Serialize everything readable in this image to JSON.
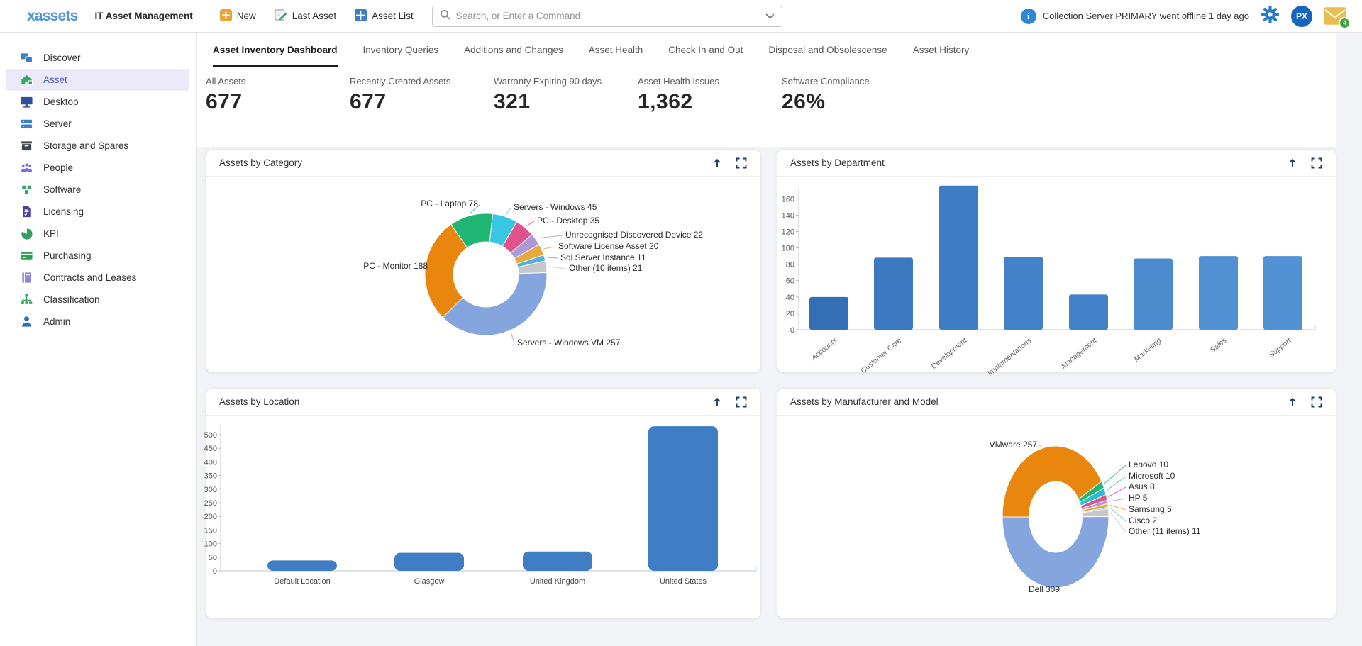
{
  "header": {
    "logo": "xassets",
    "app_title": "IT Asset Management",
    "actions": [
      {
        "label": "New",
        "icon": "plus-icon"
      },
      {
        "label": "Last Asset",
        "icon": "edit-icon"
      },
      {
        "label": "Asset List",
        "icon": "grid-icon"
      }
    ],
    "search_placeholder": "Search, or Enter a Command",
    "notification_text": "Collection Server PRIMARY went offline 1 day ago",
    "avatar_initials": "PX",
    "mail_badge_count": "4",
    "accent_blue": "#2d86d6"
  },
  "sidebar": {
    "items": [
      {
        "label": "Discover",
        "icon": "devices-icon",
        "color": "#3c7ecb"
      },
      {
        "label": "Asset",
        "icon": "home-icon",
        "color": "#34a566"
      },
      {
        "label": "Desktop",
        "icon": "monitor-icon",
        "color": "#2f4f9e"
      },
      {
        "label": "Server",
        "icon": "server-icon",
        "color": "#3c7ecb"
      },
      {
        "label": "Storage and Spares",
        "icon": "storage-icon",
        "color": "#3f4750"
      },
      {
        "label": "People",
        "icon": "people-icon",
        "color": "#7e6bd9"
      },
      {
        "label": "Software",
        "icon": "cubes-icon",
        "color": "#34a566"
      },
      {
        "label": "Licensing",
        "icon": "license-icon",
        "color": "#4b3f9e"
      },
      {
        "label": "KPI",
        "icon": "pie-icon",
        "color": "#2da05a"
      },
      {
        "label": "Purchasing",
        "icon": "card-icon",
        "color": "#2da05a"
      },
      {
        "label": "Contracts and Leases",
        "icon": "book-icon",
        "color": "#8d86d8"
      },
      {
        "label": "Classification",
        "icon": "tree-icon",
        "color": "#2da05a"
      },
      {
        "label": "Admin",
        "icon": "person-icon",
        "color": "#2f6fbe"
      }
    ]
  },
  "tabs": [
    {
      "label": "Asset Inventory Dashboard",
      "active": true
    },
    {
      "label": "Inventory Queries"
    },
    {
      "label": "Additions and Changes"
    },
    {
      "label": "Asset Health"
    },
    {
      "label": "Check In and Out"
    },
    {
      "label": "Disposal and Obsolescense"
    },
    {
      "label": "Asset History"
    }
  ],
  "stats": [
    {
      "label": "All Assets",
      "value": "677"
    },
    {
      "label": "Recently Created Assets",
      "value": "677"
    },
    {
      "label": "Warranty Expiring 90 days",
      "value": "321"
    },
    {
      "label": "Asset Health Issues",
      "value": "1,362"
    },
    {
      "label": "Software Compliance",
      "value": "26%"
    }
  ],
  "chart_data": [
    {
      "type": "donut",
      "title": "Assets by Category",
      "total": 677,
      "start_angle_deg": 325,
      "legend_position": "callout-labels",
      "slices": [
        {
          "label": "PC - Laptop",
          "value": 78,
          "color": "#1fb573"
        },
        {
          "label": "Servers - Windows",
          "value": 45,
          "color": "#38c6e3"
        },
        {
          "label": "PC - Desktop",
          "value": 35,
          "color": "#e0528e"
        },
        {
          "label": "Unrecognised Discovered Device",
          "value": 22,
          "color": "#ae97db"
        },
        {
          "label": "Software License Asset",
          "value": 20,
          "color": "#e9a93c"
        },
        {
          "label": "Sql Server Instance",
          "value": 11,
          "color": "#4fb3d9"
        },
        {
          "label": "Other (10 items)",
          "value": 21,
          "color": "#c7c7ca"
        },
        {
          "label": "Servers - Windows VM",
          "value": 257,
          "color": "#85a5de"
        },
        {
          "label": "PC - Monitor",
          "value": 188,
          "color": "#e8860d"
        }
      ]
    },
    {
      "type": "bar",
      "title": "Assets by Department",
      "categories": [
        "Accounts",
        "Customer Care",
        "Development",
        "Implementations",
        "Management",
        "Marketing",
        "Sales",
        "Support"
      ],
      "values": [
        40,
        88,
        176,
        89,
        43,
        87,
        90,
        90
      ],
      "bar_colors": [
        "#346fb5",
        "#3b78bf",
        "#3e7cc3",
        "#4282c8",
        "#4282c8",
        "#4c8bce",
        "#5190d3",
        "#5291d4"
      ],
      "ylim": [
        0,
        160
      ],
      "ytick_step": 20,
      "grid": false,
      "xlabel_style": "italic-rotated"
    },
    {
      "type": "bar",
      "title": "Assets by Location",
      "categories": [
        "Default Location",
        "Glasgow",
        "United Kingdom",
        "United States"
      ],
      "values": [
        38,
        66,
        71,
        531
      ],
      "bar_colors": [
        "#3f7ec4",
        "#3f7ec4",
        "#3f7ec4",
        "#3f7ec4"
      ],
      "ylim": [
        0,
        500
      ],
      "ytick_step": 50,
      "grid": false,
      "xlabel_style": "horizontal"
    },
    {
      "type": "donut",
      "title": "Assets by Manufacturer and Model",
      "total": 617,
      "start_angle_deg": 270,
      "legend_position": "callout-labels",
      "slices": [
        {
          "label": "VMware",
          "value": 257,
          "color": "#e8860d"
        },
        {
          "label": "Lenovo",
          "value": 10,
          "color": "#1fb573"
        },
        {
          "label": "Microsoft",
          "value": 10,
          "color": "#2ebed2"
        },
        {
          "label": "Asus",
          "value": 8,
          "color": "#e0528e"
        },
        {
          "label": "HP",
          "value": 5,
          "color": "#ae97db"
        },
        {
          "label": "Samsung",
          "value": 5,
          "color": "#e9a93c"
        },
        {
          "label": "Cisco",
          "value": 2,
          "color": "#72b8dd"
        },
        {
          "label": "Other (11 items)",
          "value": 11,
          "color": "#c7c7ca"
        },
        {
          "label": "Dell",
          "value": 309,
          "color": "#85a5de"
        }
      ]
    }
  ]
}
